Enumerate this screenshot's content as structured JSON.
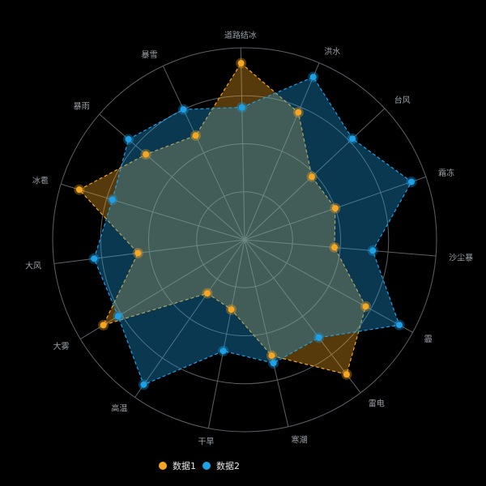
{
  "chart_data": {
    "type": "radar",
    "indicators": [
      "道路结冰",
      "洪水",
      "台风",
      "霜冻",
      "沙尘暴",
      "霾",
      "雷电",
      "寒潮",
      "干旱",
      "高温",
      "大雾",
      "大风",
      "冰雹",
      "暴雨",
      "暴雪"
    ],
    "max": 100,
    "series": [
      {
        "name": "数据1",
        "color": "#f5a623",
        "fill": "rgba(245,166,35,0.35)",
        "values": [
          92,
          72,
          48,
          50,
          47,
          72,
          88,
          62,
          37,
          34,
          86,
          56,
          90,
          68,
          60
        ]
      },
      {
        "name": "数据2",
        "color": "#1ea0e6",
        "fill": "rgba(30,160,230,0.35)",
        "values": [
          69,
          92,
          77,
          92,
          67,
          92,
          64,
          66,
          59,
          92,
          77,
          79,
          72,
          80,
          75
        ]
      }
    ],
    "legend_position": "bottom-left",
    "grid": true
  }
}
